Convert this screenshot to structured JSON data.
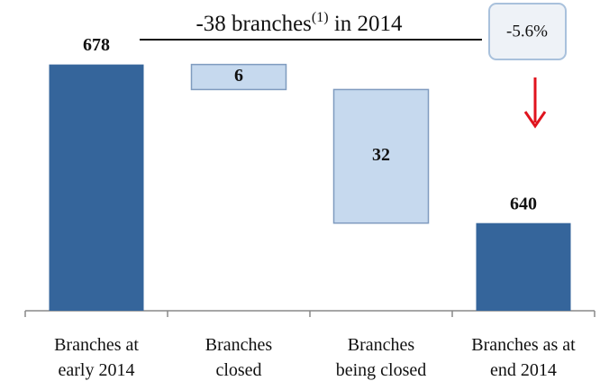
{
  "chart_data": {
    "type": "waterfall",
    "categories": [
      "Branches at\nearly 2014",
      "Branches\nclosed",
      "Branches\nbeing closed",
      "Branches as at\nend 2014"
    ],
    "values": [
      678,
      6,
      32,
      640
    ],
    "measures": [
      "absolute",
      "decrease",
      "decrease",
      "total"
    ],
    "colors": {
      "absolute": "#35659b",
      "decrease": "#c6d9ee",
      "total": "#35659b"
    },
    "ylim": [
      619,
      690
    ],
    "annotation": {
      "text": "-38 branches",
      "sup": "(1)",
      "suffix": " in 2014"
    },
    "callout": "-5.6%"
  }
}
